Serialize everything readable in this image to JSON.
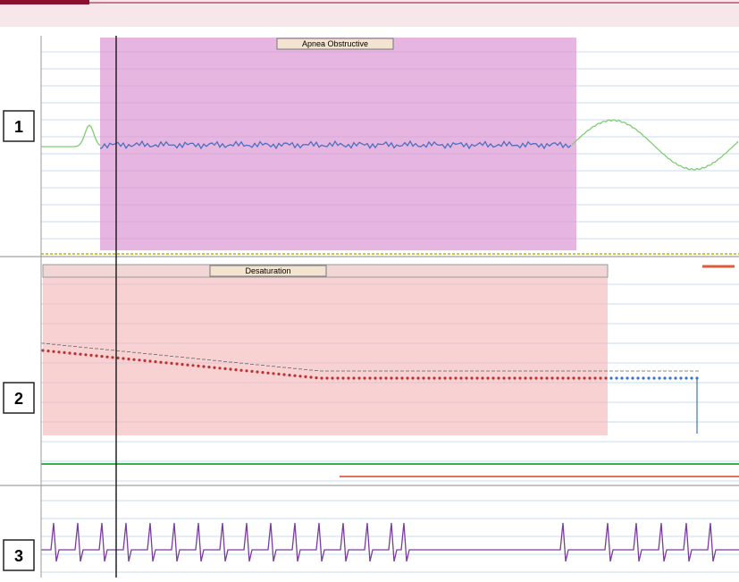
{
  "panels": [
    {
      "label": "1",
      "event": "Apnea Obstructive"
    },
    {
      "label": "2",
      "event": "Desaturation"
    },
    {
      "label": "3"
    }
  ]
}
